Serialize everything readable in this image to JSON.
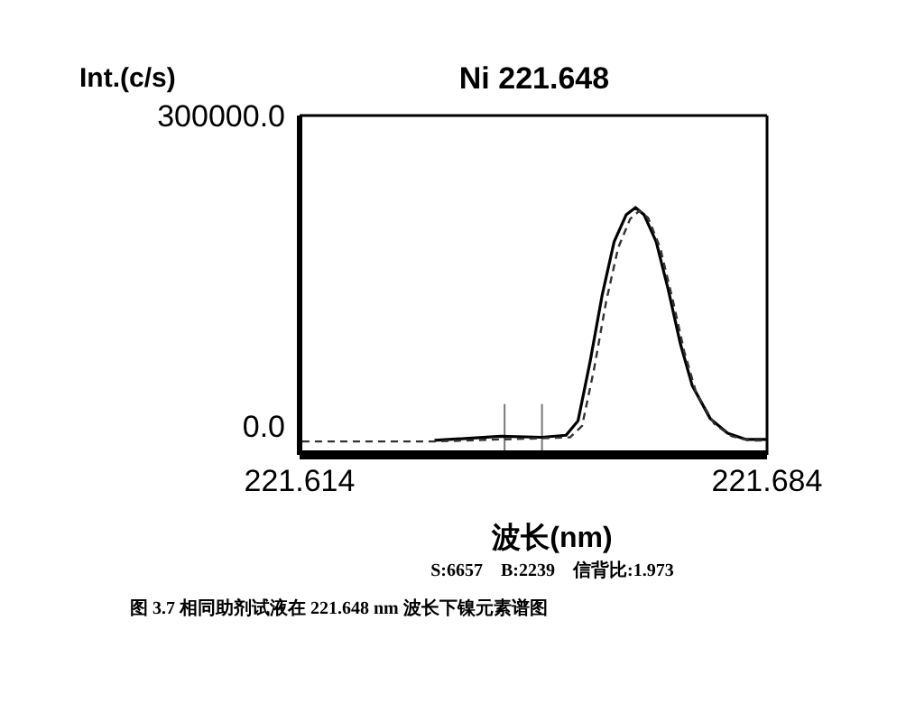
{
  "chart_data": {
    "type": "line",
    "title": "Ni 221.648",
    "ylabel": "Int.(c/s)",
    "xlabel": "波长(nm)",
    "annotations": [
      "S:6657    B:2239    信背比:1.973",
      "图 3.7 相同助剂试液在 221.648 nm 波长下镍元素谱图"
    ],
    "xlim": [
      221.614,
      221.684
    ],
    "xticks": [
      221.614,
      221.684
    ],
    "ylim": [
      -28000,
      300000
    ],
    "yticks": [
      {
        "value": 0,
        "label": "0.0"
      },
      {
        "value": 300000,
        "label": "300000.0"
      }
    ],
    "marker": "none",
    "ref_lines": [
      {
        "axis": "x",
        "value": 221.6447,
        "color": "#777777"
      },
      {
        "axis": "x",
        "value": 221.6503,
        "color": "#777777"
      }
    ],
    "series": [
      {
        "color": "#000000",
        "line_style": "solid",
        "x": [
          221.6342,
          221.6441,
          221.6503,
          221.6539,
          221.6557,
          221.6575,
          221.6593,
          221.6611,
          221.6629,
          221.6643,
          221.6656,
          221.6674,
          221.6692,
          221.671,
          221.6728,
          221.6755,
          221.6781,
          221.6808,
          221.684
        ],
        "values": [
          -14000,
          -10000,
          -11000,
          -9000,
          5000,
          62000,
          126000,
          178000,
          204000,
          211000,
          204000,
          178000,
          132000,
          80000,
          39000,
          7000,
          -7000,
          -13000,
          -13000
        ]
      },
      {
        "color": "#333333",
        "line_style": "dashed",
        "x": [
          221.6144,
          221.6342,
          221.6441,
          221.6503,
          221.6545,
          221.6563,
          221.6581,
          221.6599,
          221.6617,
          221.6635,
          221.6649,
          221.6662,
          221.668,
          221.6698,
          221.6716,
          221.6734,
          221.6761,
          221.6787,
          221.6814,
          221.684
        ],
        "values": [
          -15000,
          -15000,
          -13000,
          -12000,
          -11000,
          0,
          55000,
          120000,
          172000,
          200000,
          208000,
          201000,
          172000,
          124000,
          72000,
          32000,
          2000,
          -10000,
          -14000,
          -14000
        ]
      }
    ]
  }
}
